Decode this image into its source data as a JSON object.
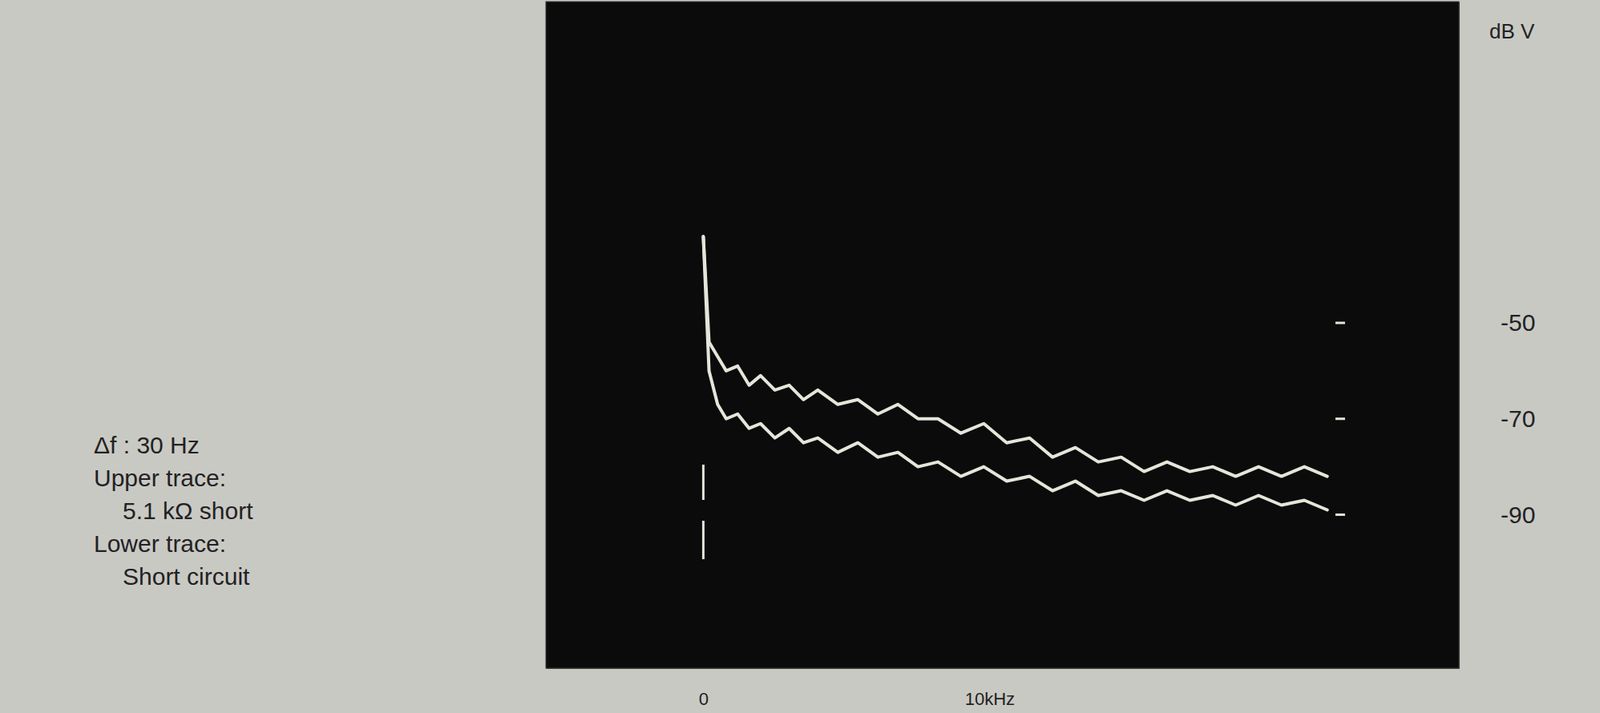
{
  "chart_data": {
    "type": "line",
    "ylabel": "dB V",
    "annotations": [
      "Δf : 30 Hz",
      "Upper trace:",
      "5.1 kΩ short",
      "Lower trace:",
      "Short circuit"
    ],
    "x": [
      0,
      200,
      500,
      800,
      1200,
      1600,
      2000,
      2500,
      3000,
      3500,
      4000,
      4700,
      5400,
      6100,
      6800,
      7500,
      8200,
      9000,
      9800,
      10600,
      11400,
      12200,
      13000,
      13800,
      14600,
      15400,
      16200,
      17000,
      17800,
      18600,
      19400,
      20200,
      21000,
      21800
    ],
    "xlim": [
      -5500,
      26400
    ],
    "xticks": [
      0,
      {
        "value": 10000,
        "label": "10kHz"
      }
    ],
    "ylim": [
      -122,
      17
    ],
    "yticks": [
      -50,
      -70,
      -90
    ],
    "grid": false,
    "series": [
      {
        "color": "#e4e6da",
        "values": [
          -32,
          -54,
          -57,
          -60,
          -59,
          -63,
          -61,
          -64,
          -63,
          -66,
          -64,
          -67,
          -66,
          -69,
          -67,
          -70,
          -70,
          -73,
          -71,
          -75,
          -74,
          -78,
          -76,
          -79,
          -78,
          -81,
          -79,
          -81,
          -80,
          -82,
          -80,
          -82,
          -80,
          -82
        ]
      },
      {
        "color": "#e4e6da",
        "values": [
          -32,
          -60,
          -67,
          -70,
          -69,
          -72,
          -71,
          -74,
          -72,
          -75,
          -74,
          -77,
          -75,
          -78,
          -77,
          -80,
          -79,
          -82,
          -80,
          -83,
          -82,
          -85,
          -83,
          -86,
          -85,
          -87,
          -85,
          -87,
          -86,
          -88,
          -86,
          -88,
          -87,
          -89
        ]
      }
    ]
  }
}
